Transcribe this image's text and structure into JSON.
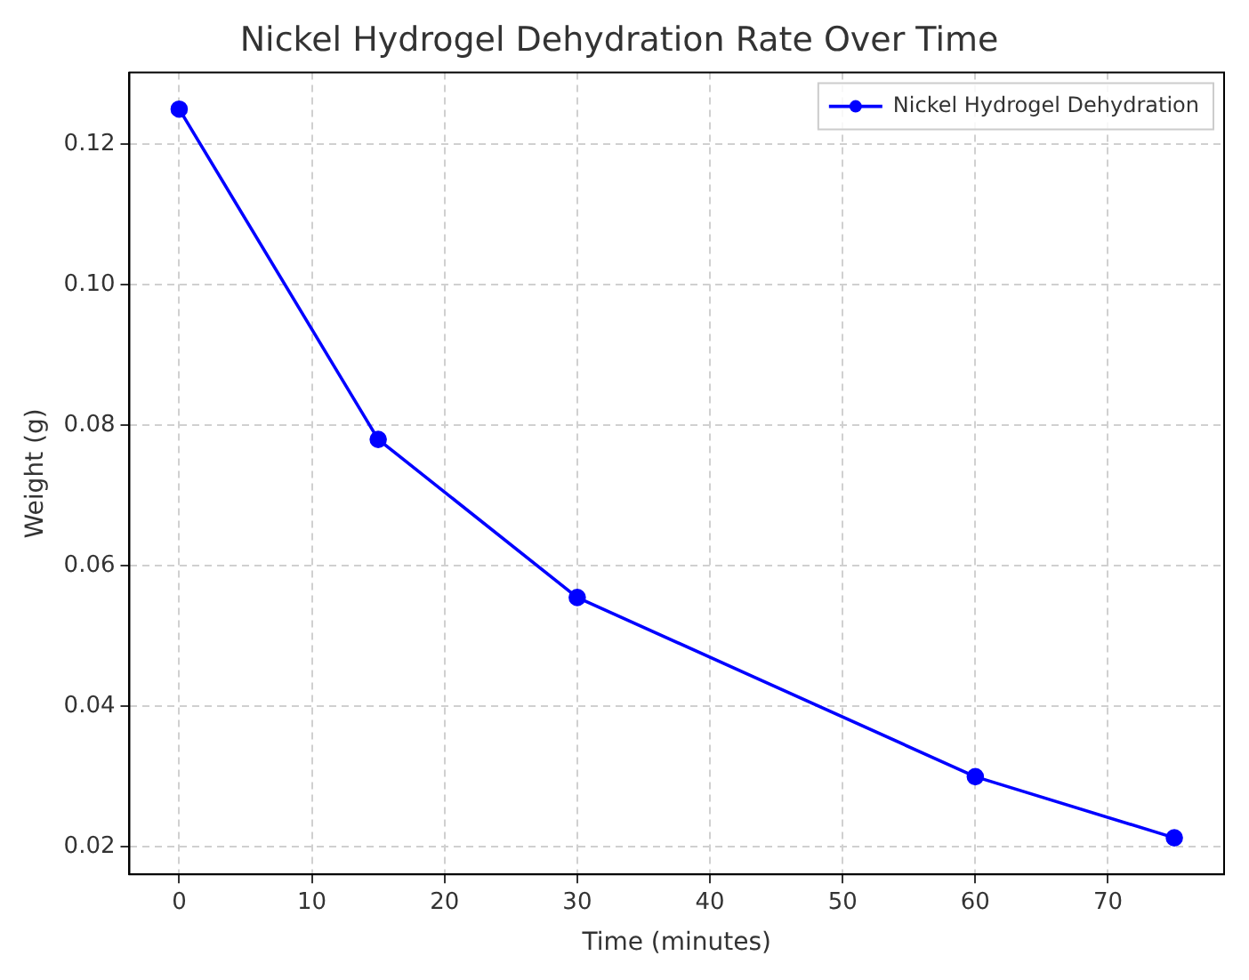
{
  "chart_data": {
    "type": "line",
    "title": "Nickel Hydrogel Dehydration Rate Over Time",
    "xlabel": "Time (minutes)",
    "ylabel": "Weight (g)",
    "x": [
      0,
      15,
      30,
      60,
      75
    ],
    "series": [
      {
        "name": "Nickel Hydrogel Dehydration",
        "color": "#0000ff",
        "values": [
          0.125,
          0.078,
          0.0555,
          0.03,
          0.0213
        ]
      }
    ],
    "xlim": [
      -3.75,
      78.75
    ],
    "xticks": [
      0,
      10,
      20,
      30,
      40,
      50,
      60,
      70
    ],
    "ylim": [
      0.0161,
      0.1302
    ],
    "yticks": [
      {
        "value": 0.02,
        "label": "0.02"
      },
      {
        "value": 0.04,
        "label": "0.04"
      },
      {
        "value": 0.06,
        "label": "0.06"
      },
      {
        "value": 0.08,
        "label": "0.08"
      },
      {
        "value": 0.1,
        "label": "0.10"
      },
      {
        "value": 0.12,
        "label": "0.12"
      }
    ],
    "grid": true,
    "legend": "top right",
    "marker": "circle",
    "line_style": "solid"
  }
}
